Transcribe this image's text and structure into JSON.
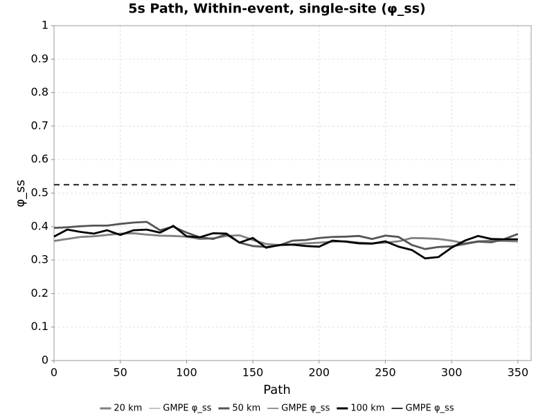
{
  "chart_data": {
    "type": "line",
    "title": "5s Path, Within-event, single-site (φ_ss)",
    "xlabel": "Path",
    "ylabel": "φ_ss",
    "x": [
      0,
      10,
      20,
      30,
      40,
      50,
      60,
      70,
      80,
      90,
      100,
      110,
      120,
      130,
      140,
      150,
      160,
      170,
      180,
      190,
      200,
      210,
      220,
      230,
      240,
      250,
      260,
      270,
      280,
      290,
      300,
      310,
      320,
      330,
      340,
      350
    ],
    "series": [
      {
        "name": "20 km",
        "color": "#808080",
        "linestyle": "solid",
        "values": [
          0.357,
          0.363,
          0.369,
          0.371,
          0.375,
          0.379,
          0.38,
          0.376,
          0.373,
          0.372,
          0.37,
          0.363,
          0.365,
          0.372,
          0.374,
          0.36,
          0.348,
          0.345,
          0.347,
          0.35,
          0.352,
          0.355,
          0.356,
          0.352,
          0.35,
          0.352,
          0.356,
          0.366,
          0.365,
          0.363,
          0.358,
          0.35,
          0.356,
          0.358,
          0.357,
          0.356
        ]
      },
      {
        "name": "GMPE φ_ss",
        "color": "#b0b0b0",
        "linestyle": "dashed",
        "values": [
          0.525,
          0.525,
          0.525,
          0.525,
          0.525,
          0.525,
          0.525,
          0.525,
          0.525,
          0.525,
          0.525,
          0.525,
          0.525,
          0.525,
          0.525,
          0.525,
          0.525,
          0.525,
          0.525,
          0.525,
          0.525,
          0.525,
          0.525,
          0.525,
          0.525,
          0.525,
          0.525,
          0.525,
          0.525,
          0.525,
          0.525,
          0.525,
          0.525,
          0.525,
          0.525,
          0.525
        ]
      },
      {
        "name": "50 km",
        "color": "#555555",
        "linestyle": "solid",
        "values": [
          0.396,
          0.398,
          0.401,
          0.403,
          0.403,
          0.408,
          0.412,
          0.414,
          0.389,
          0.4,
          0.382,
          0.368,
          0.363,
          0.377,
          0.352,
          0.342,
          0.339,
          0.344,
          0.358,
          0.36,
          0.366,
          0.369,
          0.37,
          0.372,
          0.363,
          0.373,
          0.369,
          0.345,
          0.333,
          0.339,
          0.341,
          0.348,
          0.355,
          0.353,
          0.363,
          0.378
        ]
      },
      {
        "name": "GMPE φ_ss",
        "color": "#707070",
        "linestyle": "dashed",
        "values": [
          0.525,
          0.525,
          0.525,
          0.525,
          0.525,
          0.525,
          0.525,
          0.525,
          0.525,
          0.525,
          0.525,
          0.525,
          0.525,
          0.525,
          0.525,
          0.525,
          0.525,
          0.525,
          0.525,
          0.525,
          0.525,
          0.525,
          0.525,
          0.525,
          0.525,
          0.525,
          0.525,
          0.525,
          0.525,
          0.525,
          0.525,
          0.525,
          0.525,
          0.525,
          0.525,
          0.525
        ]
      },
      {
        "name": "100 km",
        "color": "#000000",
        "linestyle": "solid",
        "values": [
          0.37,
          0.391,
          0.384,
          0.379,
          0.389,
          0.375,
          0.389,
          0.391,
          0.382,
          0.402,
          0.371,
          0.368,
          0.38,
          0.379,
          0.352,
          0.366,
          0.337,
          0.345,
          0.346,
          0.342,
          0.34,
          0.358,
          0.355,
          0.35,
          0.349,
          0.356,
          0.34,
          0.33,
          0.305,
          0.309,
          0.337,
          0.358,
          0.372,
          0.363,
          0.362,
          0.362
        ]
      },
      {
        "name": "GMPE φ_ss",
        "color": "#000000",
        "linestyle": "dashed",
        "values": [
          0.525,
          0.525,
          0.525,
          0.525,
          0.525,
          0.525,
          0.525,
          0.525,
          0.525,
          0.525,
          0.525,
          0.525,
          0.525,
          0.525,
          0.525,
          0.525,
          0.525,
          0.525,
          0.525,
          0.525,
          0.525,
          0.525,
          0.525,
          0.525,
          0.525,
          0.525,
          0.525,
          0.525,
          0.525,
          0.525,
          0.525,
          0.525,
          0.525,
          0.525,
          0.525,
          0.525
        ]
      }
    ],
    "xlim": [
      0,
      360
    ],
    "xticks": [
      0,
      50,
      100,
      150,
      200,
      250,
      300,
      350
    ],
    "ylim": [
      0,
      1
    ],
    "yticks": [
      0,
      0.1,
      0.2,
      0.3,
      0.4,
      0.5,
      0.6,
      0.7,
      0.8,
      0.9,
      1
    ],
    "grid": true,
    "legend": "bottom"
  }
}
